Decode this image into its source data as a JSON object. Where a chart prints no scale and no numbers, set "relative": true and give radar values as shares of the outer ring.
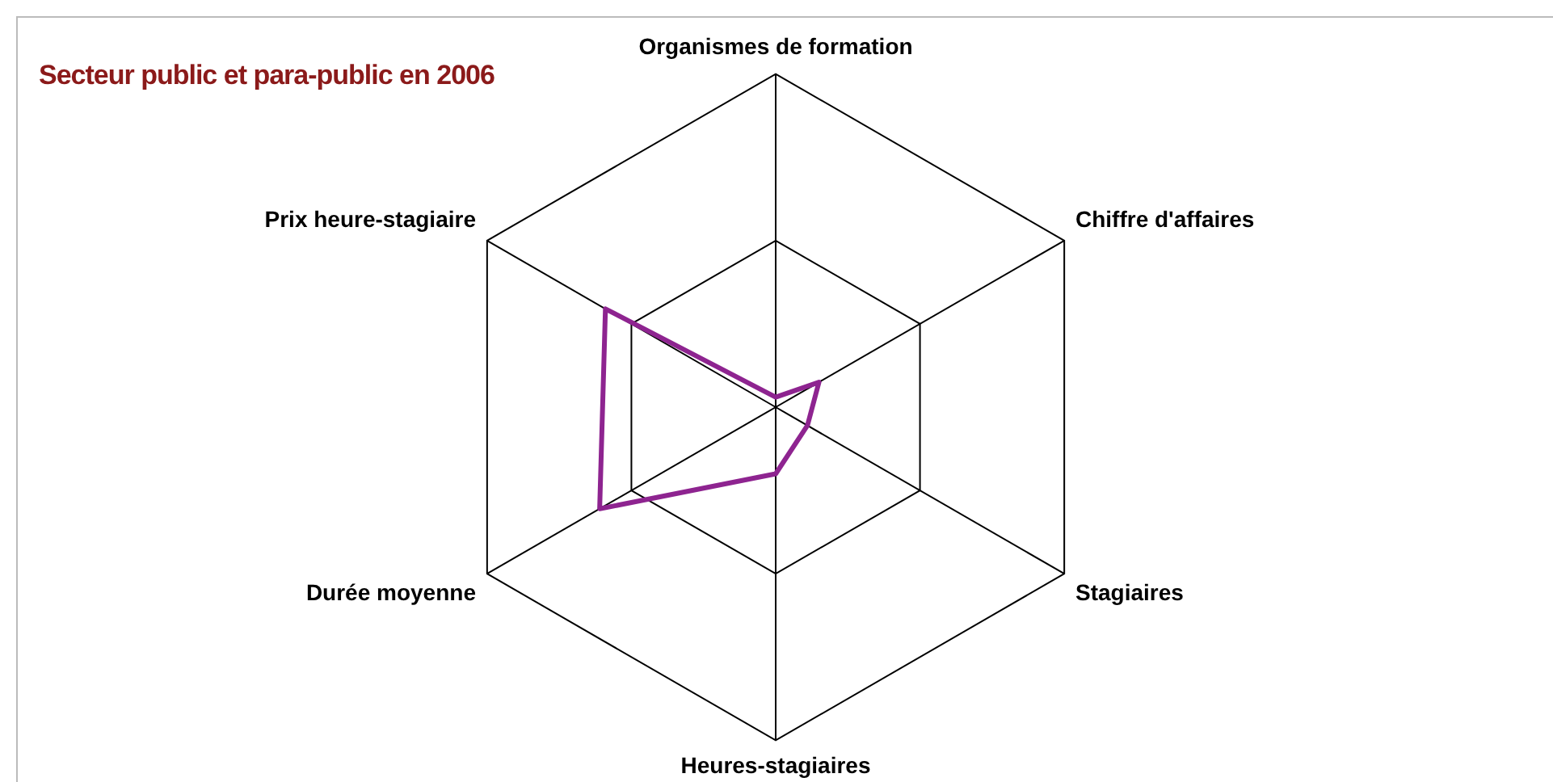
{
  "chart_data": {
    "type": "radar",
    "title": "Secteur public et para-public en 2006",
    "relative": true,
    "categories": [
      "Organismes de formation",
      "Chiffre d'affaires",
      "Stagiaires",
      "Heures-stagiaires",
      "Durée moyenne",
      "Prix heure-stagiaire"
    ],
    "series": [
      {
        "color": "#8e2490",
        "values": [
          0.03,
          0.15,
          0.11,
          0.2,
          0.61,
          0.59
        ]
      }
    ],
    "legend": false,
    "marker": "none"
  }
}
